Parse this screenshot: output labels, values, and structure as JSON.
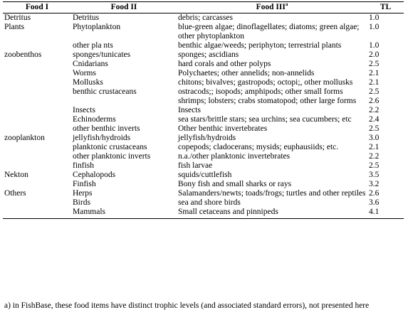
{
  "headers": {
    "food1": "Food I",
    "food2": "Food II",
    "food3": "Food III",
    "food3_sup": "a",
    "tl": "TL"
  },
  "rows": [
    {
      "food1": "Detritus",
      "food2": "Detritus",
      "food3": "debris; carcasses",
      "tl": "1.0"
    },
    {
      "food1": "Plants",
      "food2": "Phytoplankton",
      "food3": "blue-green algae; dinoflagellates; diatoms; green algae; other phytoplankton",
      "tl": "1.0"
    },
    {
      "food1": "",
      "food2": "other pla nts",
      "food3": "benthic algae/weeds; periphyton; terrestrial plants",
      "tl": "1.0"
    },
    {
      "food1": "zoobenthos",
      "food2": "sponges/tunicates",
      "food3": "sponges; ascidians",
      "tl": "2.0"
    },
    {
      "food1": "",
      "food2": "Cnidarians",
      "food3": "hard corals and other polyps",
      "tl": "2.5"
    },
    {
      "food1": "",
      "food2": "Worms",
      "food3": "Polychaetes; other annelids; non-annelids",
      "tl": "2.1"
    },
    {
      "food1": "",
      "food2": "Mollusks",
      "food3": "chitons; bivalves; gastropods; octopi;, other mollusks",
      "tl": "2.1"
    },
    {
      "food1": "",
      "food2": "benthic crustaceans",
      "food3": "ostracods;; isopods; amphipods; other small forms",
      "tl": "2.5"
    },
    {
      "food1": "",
      "food2": "",
      "food3": "shrimps; lobsters; crabs stomatopod; other large forms",
      "tl": "2.6"
    },
    {
      "food1": "",
      "food2": "Insects",
      "food3": "Insects",
      "tl": "2.2"
    },
    {
      "food1": "",
      "food2": "Echinoderms",
      "food3": "sea stars/brittle stars; sea urchins; sea cucumbers; etc",
      "tl": "2.4"
    },
    {
      "food1": "",
      "food2": "other benthic inverts",
      "food3": "Other benthic invertebrates",
      "tl": "2.5"
    },
    {
      "food1": "zooplankton",
      "food2": "jellyfish/hydroids",
      "food3": "jellyfish/hydroids",
      "tl": "3.0"
    },
    {
      "food1": "",
      "food2": "planktonic crustaceans",
      "food3": "copepods; cladocerans; mysids; euphausiids; etc.",
      "tl": "2.1"
    },
    {
      "food1": "",
      "food2": "other planktonic inverts",
      "food3": "n.a./other planktonic invertebrates",
      "tl": "2.2"
    },
    {
      "food1": "",
      "food2": "finfish",
      "food3": "fish larvae",
      "tl": "2.5"
    },
    {
      "food1": "Nekton",
      "food2": "Cephalopods",
      "food3": "squids/cuttlefish",
      "tl": "3.5"
    },
    {
      "food1": "",
      "food2": "Finfish",
      "food3": "Bony fish and small sharks or rays",
      "tl": "3.2"
    },
    {
      "food1": "Others",
      "food2": "Herps",
      "food3": "Salamanders/newts; toads/frogs; turtles and other reptiles",
      "tl": "2.6"
    },
    {
      "food1": "",
      "food2": "Birds",
      "food3": "sea and shore birds",
      "tl": "3.6"
    },
    {
      "food1": "",
      "food2": "Mammals",
      "food3": "Small cetaceans and pinnipeds",
      "tl": "4.1"
    }
  ],
  "footnote": "a) in FishBase, these food items have distinct trophic levels (and associated standard errors), not presented here"
}
